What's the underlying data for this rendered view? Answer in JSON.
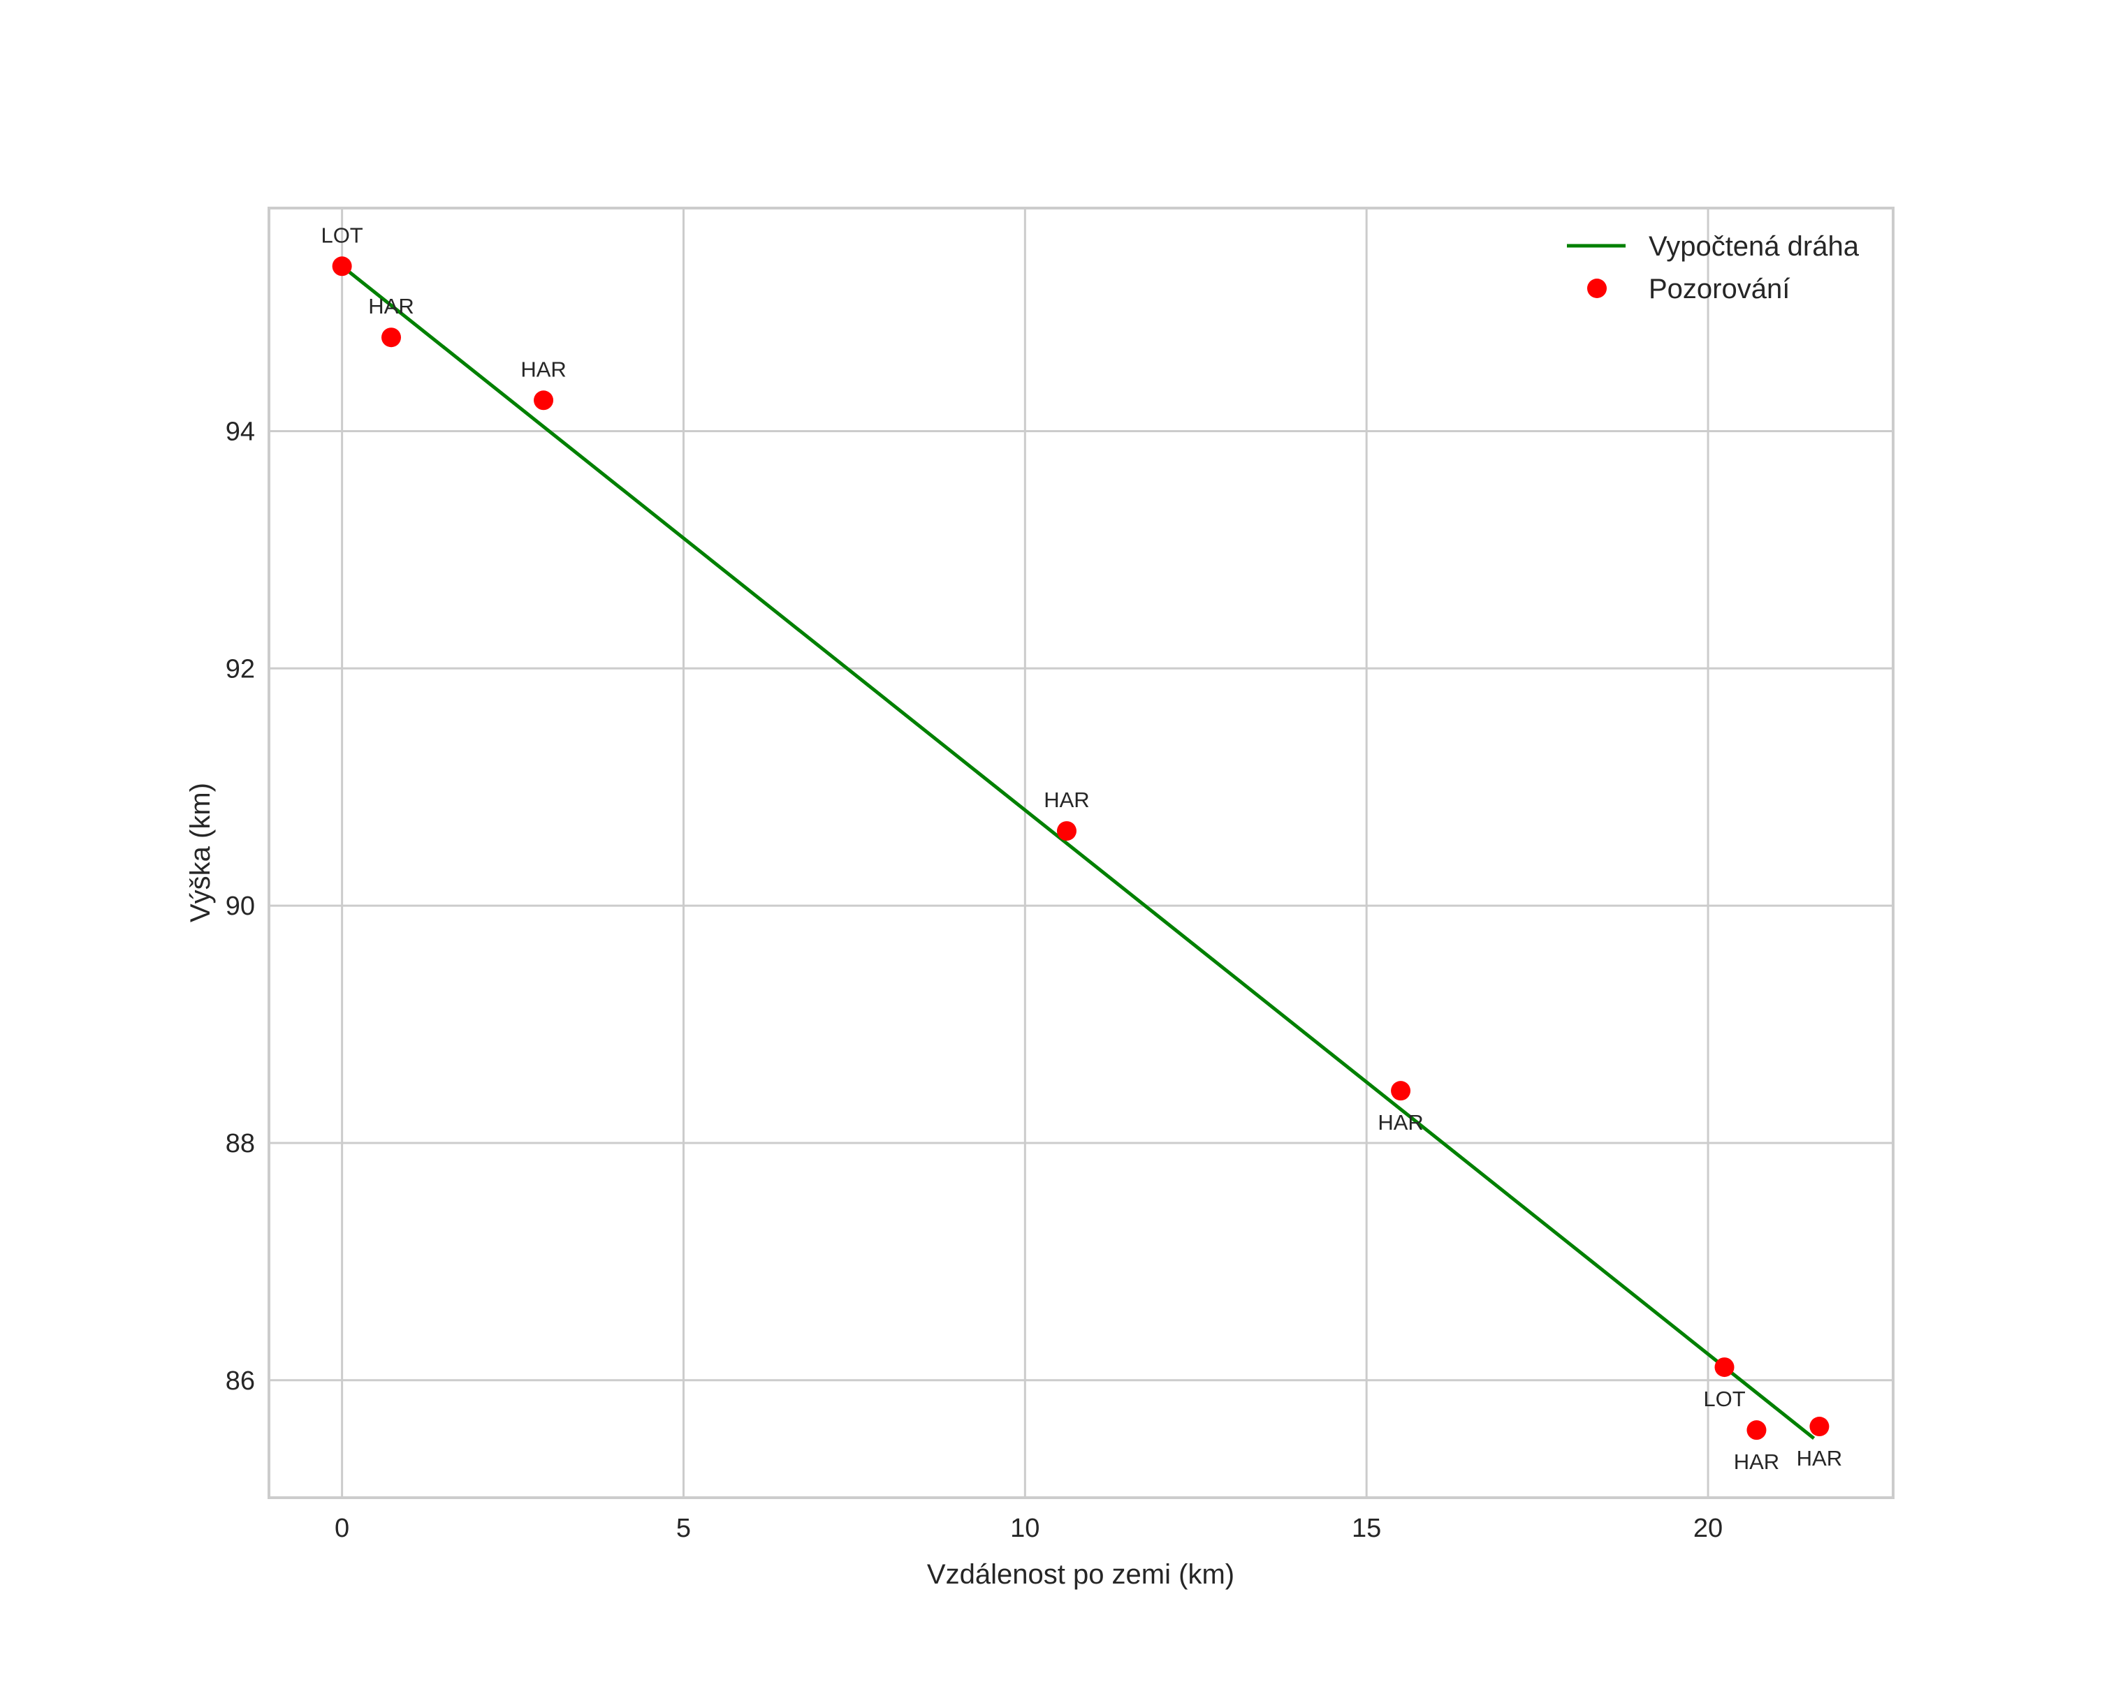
{
  "chart_data": {
    "type": "scatter",
    "title": "",
    "xlabel": "Vzdálenost po zemi (km)",
    "ylabel": "Výška (km)",
    "xlim": [
      -1.07,
      22.71
    ],
    "ylim": [
      85.01,
      95.88
    ],
    "grid": true,
    "legend_position": "upper right",
    "xticks": [
      0,
      5,
      10,
      15,
      20
    ],
    "yticks": [
      86,
      88,
      90,
      92,
      94
    ],
    "series": [
      {
        "name": "Vypočtená dráha",
        "kind": "line",
        "color": "#008000",
        "x": [
          0.0,
          21.55
        ],
        "y": [
          95.39,
          85.51
        ]
      },
      {
        "name": "Pozorování",
        "kind": "scatter",
        "color": "#ff0000",
        "points": [
          {
            "x": 0.0,
            "y": 95.39,
            "label": "LOT",
            "label_pos": "above"
          },
          {
            "x": 0.72,
            "y": 94.79,
            "label": "HAR",
            "label_pos": "above"
          },
          {
            "x": 2.95,
            "y": 94.26,
            "label": "HAR",
            "label_pos": "above"
          },
          {
            "x": 10.61,
            "y": 90.63,
            "label": "HAR",
            "label_pos": "above"
          },
          {
            "x": 15.5,
            "y": 88.44,
            "label": "HAR",
            "label_pos": "below"
          },
          {
            "x": 20.24,
            "y": 86.11,
            "label": "LOT",
            "label_pos": "below"
          },
          {
            "x": 20.71,
            "y": 85.58,
            "label": "HAR",
            "label_pos": "below"
          },
          {
            "x": 21.63,
            "y": 85.61,
            "label": "HAR",
            "label_pos": "below"
          }
        ]
      }
    ]
  },
  "legend": {
    "items": [
      {
        "label": "Vypočtená dráha",
        "symbol": "line",
        "color": "#008000"
      },
      {
        "label": "Pozorování",
        "symbol": "dot",
        "color": "#ff0000"
      }
    ]
  }
}
